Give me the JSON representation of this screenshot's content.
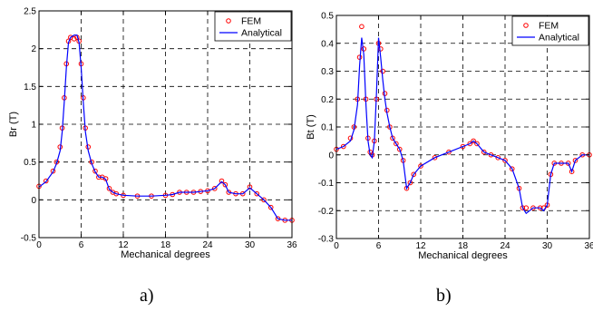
{
  "chart_data": [
    {
      "type": "line",
      "caption": "a)",
      "xlabel": "Mechanical degrees",
      "ylabel": "Br (T)",
      "xlim": [
        0,
        36
      ],
      "ylim": [
        -0.5,
        2.5
      ],
      "xticks": [
        0,
        6,
        12,
        18,
        24,
        30,
        36
      ],
      "yticks": [
        -0.5,
        0,
        0.5,
        1,
        1.5,
        2,
        2.5
      ],
      "ytick_labels": [
        "-0.5",
        "0",
        "0.5",
        "1",
        "1.5",
        "2",
        "2.5"
      ],
      "grid": true,
      "legend": "top-right",
      "series": [
        {
          "name": "FEM",
          "style": "circle-markers",
          "color": "#ff0000",
          "x": [
            0,
            1,
            2,
            2.5,
            3,
            3.3,
            3.6,
            3.9,
            4.2,
            4.5,
            5,
            5.4,
            5.7,
            6,
            6.3,
            6.6,
            7,
            7.5,
            8,
            8.5,
            9,
            9.5,
            10,
            10.5,
            11,
            12,
            14,
            16,
            18,
            19,
            20,
            21,
            22,
            23,
            24,
            25,
            26,
            26.5,
            27,
            28,
            29,
            30,
            31,
            32,
            33,
            34,
            35,
            36
          ],
          "y": [
            0.18,
            0.25,
            0.38,
            0.5,
            0.7,
            0.95,
            1.35,
            1.8,
            2.1,
            2.15,
            2.13,
            2.15,
            2.1,
            1.8,
            1.35,
            0.95,
            0.7,
            0.5,
            0.38,
            0.3,
            0.3,
            0.28,
            0.15,
            0.1,
            0.08,
            0.06,
            0.05,
            0.05,
            0.06,
            0.07,
            0.1,
            0.1,
            0.1,
            0.11,
            0.12,
            0.15,
            0.25,
            0.2,
            0.1,
            0.08,
            0.08,
            0.17,
            0.08,
            0.0,
            -0.1,
            -0.25,
            -0.27,
            -0.27
          ]
        },
        {
          "name": "Analytical",
          "style": "line",
          "color": "#0000ff",
          "x": [
            0,
            1,
            2,
            2.5,
            3,
            3.3,
            3.6,
            3.9,
            4.2,
            4.5,
            5,
            5.4,
            5.7,
            6,
            6.3,
            6.6,
            7,
            7.5,
            8,
            8.5,
            9,
            9.5,
            10,
            10.5,
            11,
            12,
            14,
            16,
            18,
            19,
            20,
            21,
            22,
            23,
            24,
            25,
            26,
            26.5,
            27,
            28,
            29,
            30,
            31,
            32,
            33,
            34,
            35,
            36
          ],
          "y": [
            0.17,
            0.24,
            0.37,
            0.48,
            0.65,
            0.9,
            1.3,
            1.75,
            2.08,
            2.15,
            2.18,
            2.18,
            2.08,
            1.75,
            1.3,
            0.9,
            0.65,
            0.48,
            0.37,
            0.3,
            0.3,
            0.27,
            0.14,
            0.1,
            0.08,
            0.06,
            0.05,
            0.05,
            0.06,
            0.07,
            0.1,
            0.1,
            0.1,
            0.11,
            0.12,
            0.15,
            0.24,
            0.2,
            0.1,
            0.08,
            0.08,
            0.16,
            0.08,
            0.0,
            -0.1,
            -0.25,
            -0.27,
            -0.27
          ]
        }
      ]
    },
    {
      "type": "line",
      "caption": "b)",
      "xlabel": "Mechanical degrees",
      "ylabel": "Bt (T)",
      "xlim": [
        0,
        36
      ],
      "ylim": [
        -0.3,
        0.5
      ],
      "xticks": [
        0,
        6,
        12,
        18,
        24,
        30,
        36
      ],
      "yticks": [
        -0.3,
        -0.2,
        -0.1,
        0,
        0.1,
        0.2,
        0.3,
        0.4,
        0.5
      ],
      "ytick_labels": [
        "-0.3",
        "-0.2",
        "-0.1",
        "0",
        "0.1",
        "0.2",
        "0.3",
        "0.4",
        "0.5"
      ],
      "grid": true,
      "legend": "top-right",
      "series": [
        {
          "name": "FEM",
          "style": "circle-markers",
          "color": "#ff0000",
          "x": [
            0,
            1,
            2,
            2.5,
            3,
            3.3,
            3.6,
            3.9,
            4.2,
            4.5,
            4.8,
            5.1,
            5.4,
            5.7,
            6,
            6.3,
            6.6,
            6.9,
            7.2,
            7.6,
            8,
            8.5,
            9,
            9.5,
            10,
            10.5,
            11,
            12,
            14,
            16,
            18,
            19,
            19.5,
            20,
            21,
            22,
            23,
            24,
            25,
            26,
            26.5,
            27,
            28,
            29,
            29.5,
            30,
            30.5,
            31,
            32,
            33,
            33.5,
            34,
            35,
            36
          ],
          "y": [
            0.02,
            0.03,
            0.06,
            0.1,
            0.2,
            0.35,
            0.46,
            0.38,
            0.2,
            0.06,
            0.01,
            0.0,
            0.05,
            0.2,
            0.4,
            0.38,
            0.3,
            0.22,
            0.16,
            0.1,
            0.06,
            0.04,
            0.02,
            -0.02,
            -0.12,
            -0.1,
            -0.07,
            -0.04,
            -0.01,
            0.01,
            0.03,
            0.04,
            0.05,
            0.04,
            0.01,
            0.0,
            -0.01,
            -0.02,
            -0.05,
            -0.12,
            -0.19,
            -0.19,
            -0.19,
            -0.19,
            -0.19,
            -0.18,
            -0.07,
            -0.03,
            -0.03,
            -0.03,
            -0.06,
            -0.02,
            0.0,
            0.0
          ]
        },
        {
          "name": "Analytical",
          "style": "line",
          "color": "#0000ff",
          "x": [
            0,
            1,
            2,
            2.5,
            3,
            3.3,
            3.6,
            3.9,
            4.2,
            4.5,
            4.8,
            5.1,
            5.4,
            5.7,
            6,
            6.3,
            6.6,
            6.9,
            7.2,
            7.6,
            8,
            8.5,
            9,
            9.5,
            10,
            10.5,
            11,
            12,
            14,
            16,
            18,
            19,
            19.5,
            20,
            21,
            22,
            23,
            24,
            25,
            26,
            26.5,
            27,
            28,
            29,
            29.5,
            30,
            30.5,
            31,
            32,
            33,
            33.5,
            34,
            35,
            36
          ],
          "y": [
            0.02,
            0.03,
            0.05,
            0.09,
            0.18,
            0.32,
            0.42,
            0.36,
            0.18,
            0.05,
            0.0,
            -0.01,
            0.05,
            0.22,
            0.42,
            0.35,
            0.27,
            0.2,
            0.15,
            0.1,
            0.06,
            0.04,
            0.02,
            -0.02,
            -0.12,
            -0.1,
            -0.07,
            -0.04,
            -0.01,
            0.01,
            0.03,
            0.04,
            0.05,
            0.04,
            0.01,
            0.0,
            -0.01,
            -0.02,
            -0.05,
            -0.12,
            -0.19,
            -0.21,
            -0.19,
            -0.19,
            -0.2,
            -0.18,
            -0.07,
            -0.03,
            -0.03,
            -0.03,
            -0.06,
            -0.02,
            0.0,
            0.0
          ]
        }
      ]
    }
  ]
}
